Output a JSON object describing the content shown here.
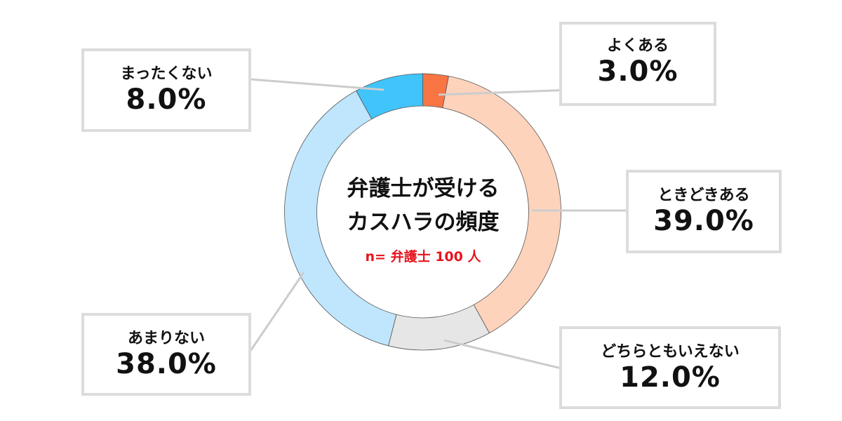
{
  "chart_data": {
    "type": "pie",
    "donut": true,
    "title": [
      "弁護士が受ける",
      "カスハラの頻度"
    ],
    "subtitle": "n= 弁護士 100 人",
    "categories": [
      "よくある",
      "ときどきある",
      "どちらともいえない",
      "あまりない",
      "まったくない"
    ],
    "values": [
      3.0,
      39.0,
      12.0,
      38.0,
      8.0
    ],
    "labels": [
      "3.0%",
      "39.0%",
      "12.0%",
      "38.0%",
      "8.0%"
    ],
    "colors": [
      "#f97544",
      "#fdd3bc",
      "#e6e6e6",
      "#bfe6fc",
      "#40c4fa"
    ],
    "start": "top, clockwise"
  }
}
